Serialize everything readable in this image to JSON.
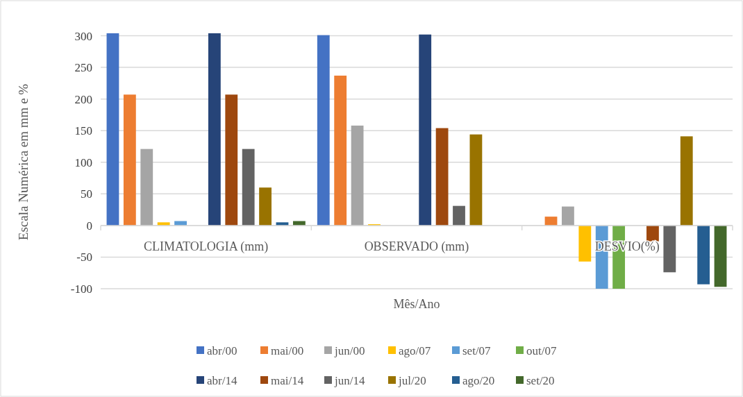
{
  "chart_data": {
    "type": "bar",
    "xlabel": "Mês/Ano",
    "ylabel": "Escala Numérica em mm e %",
    "categories": [
      "CLIMATOLOGIA (mm)",
      "OBSERVADO (mm)",
      "DESVIO(%)"
    ],
    "series": [
      {
        "name": "abr/00",
        "color": "#4472c4",
        "values": [
          304,
          301,
          0
        ]
      },
      {
        "name": "mai/00",
        "color": "#ed7d31",
        "values": [
          207,
          237,
          14
        ]
      },
      {
        "name": "jun/00",
        "color": "#a5a5a5",
        "values": [
          121,
          158,
          30
        ]
      },
      {
        "name": "ago/07",
        "color": "#ffc000",
        "values": [
          5,
          2,
          -57
        ]
      },
      {
        "name": "set/07",
        "color": "#5b9bd5",
        "values": [
          7,
          0,
          -100
        ]
      },
      {
        "name": "out/07",
        "color": "#70ad47",
        "values": [
          0,
          0,
          -100
        ]
      },
      {
        "name": "abr/14",
        "color": "#264478",
        "values": [
          304,
          302,
          0
        ]
      },
      {
        "name": "mai/14",
        "color": "#9e480e",
        "values": [
          207,
          154,
          -25
        ]
      },
      {
        "name": "jun/14",
        "color": "#636363",
        "values": [
          121,
          31,
          -74
        ]
      },
      {
        "name": "jul/20",
        "color": "#997300",
        "values": [
          60,
          144,
          141
        ]
      },
      {
        "name": "ago/20",
        "color": "#255e91",
        "values": [
          5,
          0,
          -93
        ]
      },
      {
        "name": "set/20",
        "color": "#43682b",
        "values": [
          7,
          0,
          -97
        ]
      }
    ],
    "ylim": [
      -100,
      305
    ],
    "yticks": [
      300,
      250,
      200,
      150,
      100,
      50,
      0,
      -50,
      -100
    ],
    "grid": "y",
    "legend": "bottom"
  }
}
